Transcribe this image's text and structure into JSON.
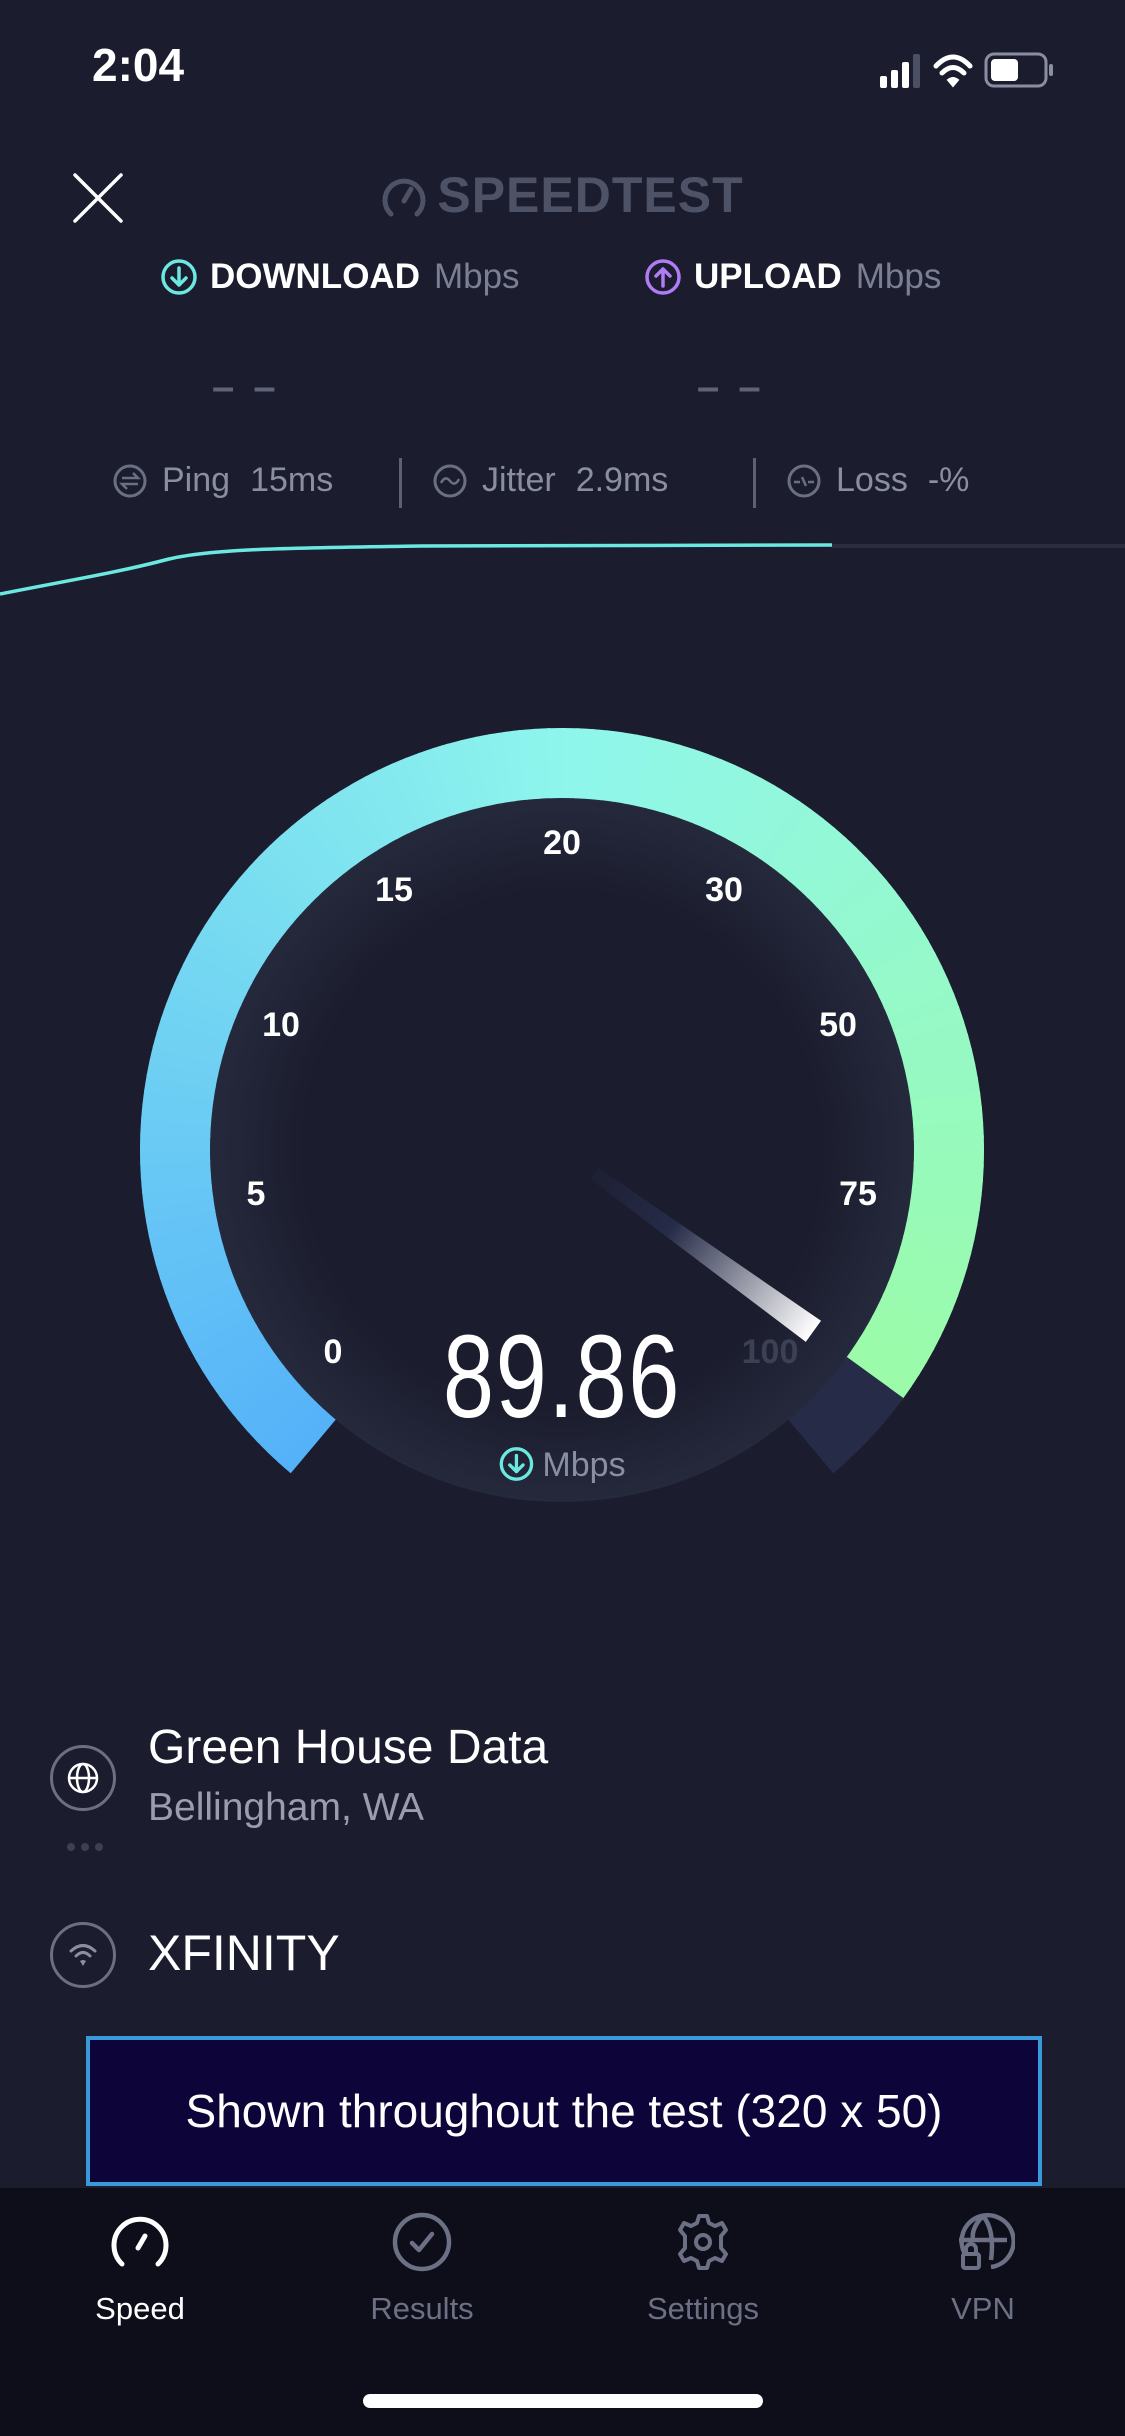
{
  "status_bar": {
    "time": "2:04",
    "signal_icon": "cellular-signal-icon",
    "wifi_icon": "wifi-icon",
    "battery_icon": "battery-icon"
  },
  "header": {
    "logo_text": "SPEEDTEST",
    "close_icon": "close-icon"
  },
  "download": {
    "label": "DOWNLOAD",
    "unit": "Mbps",
    "value": "– –",
    "color": "#6be9e0"
  },
  "upload": {
    "label": "UPLOAD",
    "unit": "Mbps",
    "value": "– –",
    "color": "#b07cf6"
  },
  "stats": [
    {
      "label": "Ping",
      "value": "15ms",
      "icon": "ping-icon"
    },
    {
      "label": "Jitter",
      "value": "2.9ms",
      "icon": "jitter-icon"
    },
    {
      "label": "Loss",
      "value": "-%",
      "icon": "loss-icon"
    }
  ],
  "gauge": {
    "ticks": [
      "0",
      "5",
      "10",
      "15",
      "20",
      "30",
      "50",
      "75",
      "100"
    ],
    "current_value": 89.86,
    "display_value": "89.86",
    "unit": "Mbps",
    "colors": {
      "start": "#55b2f9",
      "mid": "#8ff6ec",
      "end": "#9cfca0",
      "remaining": "#262b48"
    }
  },
  "server": {
    "name": "Green House Data",
    "location": "Bellingham, WA",
    "icon": "globe-icon"
  },
  "connection": {
    "name": "XFINITY",
    "icon": "wifi-icon"
  },
  "ad": {
    "text": "Shown throughout the test (320 x 50)"
  },
  "tabs": [
    {
      "label": "Speed",
      "icon": "speedometer-icon",
      "active": true
    },
    {
      "label": "Results",
      "icon": "checkmark-circle-icon",
      "active": false
    },
    {
      "label": "Settings",
      "icon": "gear-icon",
      "active": false
    },
    {
      "label": "VPN",
      "icon": "globe-lock-icon",
      "active": false
    }
  ]
}
